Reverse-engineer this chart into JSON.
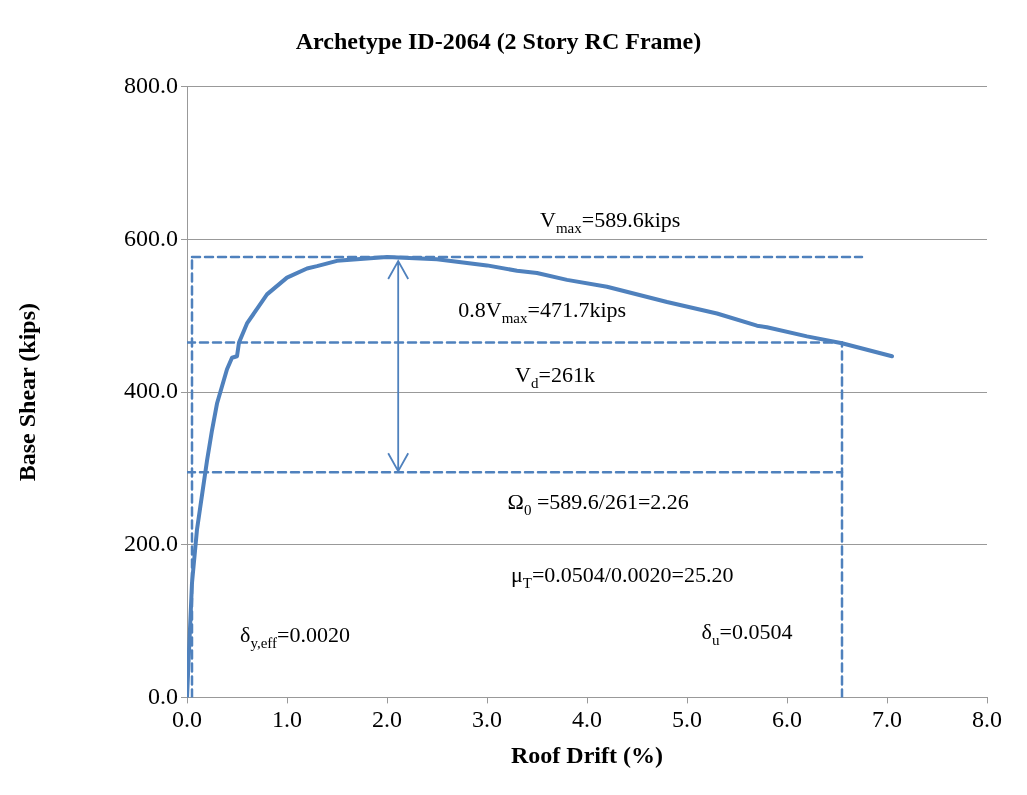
{
  "chart_data": {
    "type": "line",
    "title": "Archetype ID-2064 (2 Story RC Frame)",
    "xlabel": "Roof Drift (%)",
    "ylabel": "Base Shear (kips)",
    "xlim": [
      0,
      8
    ],
    "xticks": [
      {
        "value": 0,
        "label": "0.0"
      },
      {
        "value": 1,
        "label": "1.0"
      },
      {
        "value": 2,
        "label": "2.0"
      },
      {
        "value": 3,
        "label": "3.0"
      },
      {
        "value": 4,
        "label": "4.0"
      },
      {
        "value": 5,
        "label": "5.0"
      },
      {
        "value": 6,
        "label": "6.0"
      },
      {
        "value": 7,
        "label": "7.0"
      },
      {
        "value": 8,
        "label": "8.0"
      }
    ],
    "ylim": [
      0,
      800
    ],
    "yticks": [
      {
        "value": 0,
        "label": "0.0"
      },
      {
        "value": 200,
        "label": "200.0"
      },
      {
        "value": 400,
        "label": "400.0"
      },
      {
        "value": 600,
        "label": "600.0"
      },
      {
        "value": 800,
        "label": "800.0"
      }
    ],
    "grid": "y",
    "legend": false,
    "marker": "none",
    "series": [
      {
        "color": "#4f81bd",
        "line_style": "solid",
        "x": [
          0,
          0.02,
          0.05,
          0.1,
          0.15,
          0.2,
          0.25,
          0.3,
          0.4,
          0.45,
          0.5,
          0.52,
          0.6,
          0.8,
          1.0,
          1.2,
          1.3,
          1.5,
          2.0,
          2.5,
          3.0,
          3.3,
          3.5,
          3.8,
          4.2,
          4.8,
          5.3,
          5.7,
          5.8,
          6.2,
          6.55,
          7.05
        ],
        "values": [
          0,
          60,
          150,
          220,
          265,
          310,
          350,
          385,
          430,
          445,
          447,
          465,
          490,
          528,
          550,
          562,
          565,
          572,
          577,
          574,
          566,
          559,
          556,
          547,
          538,
          518,
          503,
          487,
          485,
          473,
          464,
          447
        ]
      },
      {
        "color": "#4f81bd",
        "line_style": "dashed",
        "x": [
          0.05,
          6.75
        ],
        "values": [
          577,
          577
        ]
      },
      {
        "color": "#4f81bd",
        "line_style": "dashed",
        "x": [
          0,
          6.55
        ],
        "values": [
          465,
          465
        ]
      },
      {
        "color": "#4f81bd",
        "line_style": "dashed",
        "x": [
          0,
          6.55
        ],
        "values": [
          295,
          295
        ]
      },
      {
        "color": "#4f81bd",
        "line_style": "dashed",
        "x": [
          0.05,
          0.05
        ],
        "values": [
          0,
          577
        ]
      },
      {
        "color": "#4f81bd",
        "line_style": "dashed",
        "x": [
          6.55,
          6.55
        ],
        "values": [
          0,
          465
        ]
      }
    ],
    "annotations": [
      "V$_{max}$=589.6kips",
      "0.8V$_{max}$=471.7kips",
      "V$_{d}$=261k",
      "Ω$_{0}$ =589.6/261=2.26",
      "μ$_{T}$=0.0504/0.0020=25.20",
      "δ$_{y,eff}$=0.0020",
      "δ$_{u}$=0.0504"
    ]
  }
}
